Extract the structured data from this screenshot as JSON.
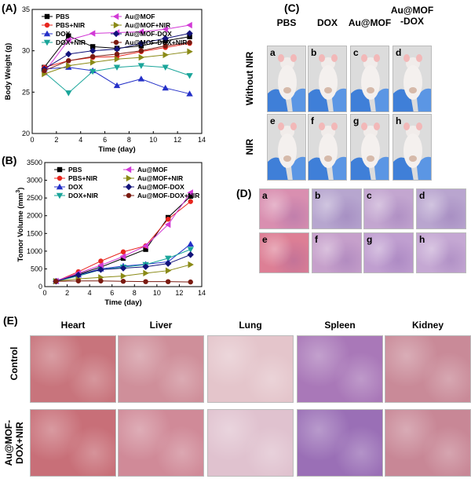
{
  "panels": {
    "A": "(A)",
    "B": "(B)",
    "C": "(C)",
    "D": "(D)",
    "E": "(E)"
  },
  "series_styles": [
    {
      "name": "PBS",
      "color": "#000000",
      "marker": "square"
    },
    {
      "name": "PBS+NIR",
      "color": "#e8261e",
      "marker": "circle"
    },
    {
      "name": "DOX",
      "color": "#2430c8",
      "marker": "triangle-up"
    },
    {
      "name": "DOX+NIR",
      "color": "#1aa59a",
      "marker": "triangle-down"
    },
    {
      "name": "Au@MOF",
      "color": "#d23ad6",
      "marker": "triangle-left"
    },
    {
      "name": "Au@MOF+NIR",
      "color": "#8a8a16",
      "marker": "triangle-right"
    },
    {
      "name": "Au@MOF-DOX",
      "color": "#12127a",
      "marker": "diamond"
    },
    {
      "name": "Au@MOF-DOX+NIR",
      "color": "#7a1a10",
      "marker": "hexagon"
    }
  ],
  "chart_data": [
    {
      "type": "line",
      "title": "",
      "xlabel": "Time (day)",
      "ylabel": "Body Weight (g)",
      "xlim": [
        0,
        14
      ],
      "ylim": [
        20,
        35
      ],
      "xticks": [
        0,
        2,
        4,
        6,
        8,
        10,
        12,
        14
      ],
      "yticks": [
        20,
        25,
        30,
        35
      ],
      "x": [
        1,
        3,
        5,
        7,
        9,
        11,
        13
      ],
      "series": [
        {
          "name": "PBS",
          "values": [
            28.0,
            31.8,
            30.5,
            30.3,
            30.6,
            31.2,
            31.7
          ]
        },
        {
          "name": "PBS+NIR",
          "values": [
            28.0,
            28.8,
            29.2,
            29.3,
            29.9,
            30.4,
            30.9
          ]
        },
        {
          "name": "DOX",
          "values": [
            27.8,
            28.0,
            27.6,
            25.8,
            26.6,
            25.5,
            24.8
          ]
        },
        {
          "name": "DOX+NIR",
          "values": [
            27.4,
            24.9,
            27.5,
            28.0,
            28.2,
            28.0,
            27.0
          ]
        },
        {
          "name": "Au@MOF",
          "values": [
            27.4,
            31.3,
            32.1,
            32.2,
            32.3,
            32.6,
            33.1
          ]
        },
        {
          "name": "Au@MOF+NIR",
          "values": [
            27.2,
            28.2,
            28.6,
            29.0,
            29.2,
            29.5,
            29.9
          ]
        },
        {
          "name": "Au@MOF-DOX",
          "values": [
            27.8,
            29.6,
            30.0,
            30.2,
            30.9,
            31.5,
            32.1
          ]
        },
        {
          "name": "Au@MOF-DOX+NIR",
          "values": [
            27.6,
            28.8,
            29.3,
            29.6,
            30.0,
            30.6,
            31.0
          ]
        }
      ]
    },
    {
      "type": "line",
      "title": "",
      "xlabel": "Time (day)",
      "ylabel": "Tomor Volume (mm",
      "ylabel_sup": "3",
      "ylabel_end": ")",
      "xlim": [
        0,
        14
      ],
      "ylim": [
        0,
        3500
      ],
      "xticks": [
        0,
        2,
        4,
        6,
        8,
        10,
        12,
        14
      ],
      "yticks": [
        0,
        500,
        1000,
        1500,
        2000,
        2500,
        3000,
        3500
      ],
      "x": [
        1,
        3,
        5,
        7,
        9,
        11,
        13
      ],
      "series": [
        {
          "name": "PBS",
          "values": [
            150,
            350,
            550,
            800,
            1050,
            1950,
            2550
          ]
        },
        {
          "name": "PBS+NIR",
          "values": [
            150,
            420,
            720,
            980,
            1150,
            1900,
            2400
          ]
        },
        {
          "name": "DOX",
          "values": [
            150,
            330,
            500,
            580,
            630,
            700,
            1200
          ]
        },
        {
          "name": "DOX+NIR",
          "values": [
            150,
            300,
            480,
            550,
            620,
            800,
            1050
          ]
        },
        {
          "name": "Au@MOF",
          "values": [
            160,
            380,
            600,
            850,
            1150,
            1750,
            2650
          ]
        },
        {
          "name": "Au@MOF+NIR",
          "values": [
            150,
            220,
            260,
            300,
            380,
            450,
            620
          ]
        },
        {
          "name": "Au@MOF-DOX",
          "values": [
            150,
            330,
            480,
            520,
            560,
            650,
            900
          ]
        },
        {
          "name": "Au@MOF-DOX+NIR",
          "values": [
            150,
            160,
            160,
            150,
            140,
            140,
            130
          ]
        }
      ]
    }
  ],
  "panel_c": {
    "col_headers": [
      "PBS",
      "DOX",
      "Au@MOF",
      "Au@MOF\n-DOX"
    ],
    "row_labels": [
      "Without NIR",
      "NIR"
    ],
    "tile_letters": [
      "a",
      "b",
      "c",
      "d",
      "e",
      "f",
      "g",
      "h"
    ]
  },
  "panel_d": {
    "tile_letters": [
      "a",
      "b",
      "c",
      "d",
      "e",
      "f",
      "g",
      "h"
    ]
  },
  "panel_e": {
    "col_headers": [
      "Heart",
      "Liver",
      "Lung",
      "Spleen",
      "Kidney"
    ],
    "row_labels": [
      "Control",
      "Au@MOF-\nDOX+NIR"
    ]
  }
}
